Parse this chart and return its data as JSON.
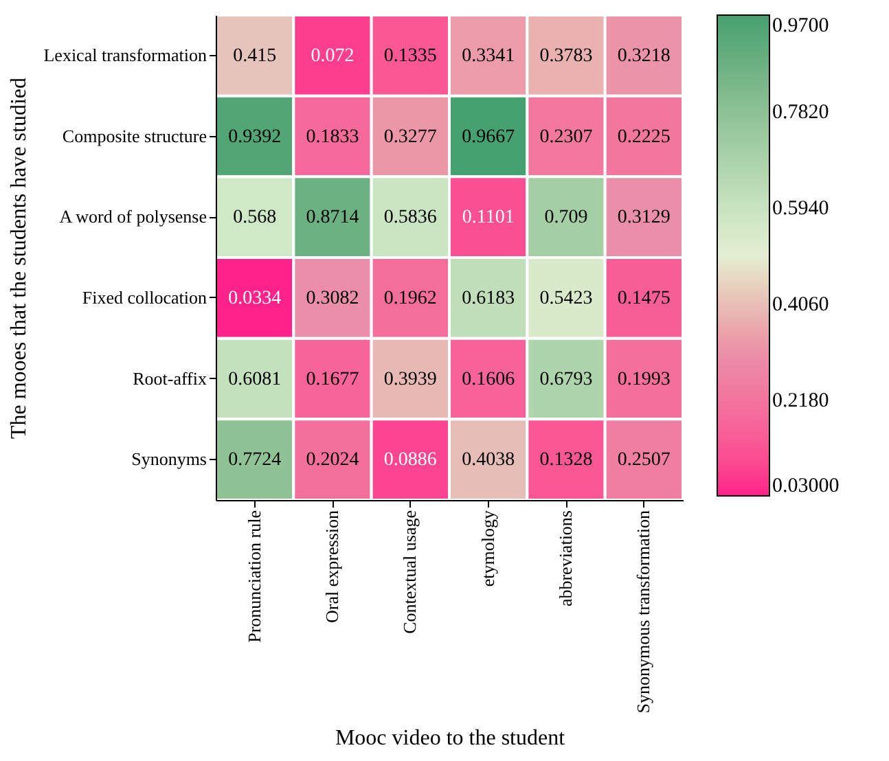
{
  "chart_data": {
    "type": "heatmap",
    "xlabel": "Mooc video to the student",
    "ylabel": "The mooes that the students have studied",
    "categories": [
      "Pronunciation rule",
      "Oral expression",
      "Contextual usage",
      "etymology",
      "abbreviations",
      "Synonymous transformation"
    ],
    "y_categories": [
      "Lexical transformation",
      "Composite structure",
      "A word of polysense",
      "Fixed collocation",
      "Root-affix",
      "Synonyms"
    ],
    "cells": [
      [
        0.415,
        0.072,
        0.1335,
        0.3341,
        0.3783,
        0.3218
      ],
      [
        0.9392,
        0.1833,
        0.3277,
        0.9667,
        0.2307,
        0.2225
      ],
      [
        0.568,
        0.8714,
        0.5836,
        0.1101,
        0.709,
        0.3129
      ],
      [
        0.0334,
        0.3082,
        0.1962,
        0.6183,
        0.5423,
        0.1475
      ],
      [
        0.6081,
        0.1677,
        0.3939,
        0.1606,
        0.6793,
        0.1993
      ],
      [
        0.7724,
        0.2024,
        0.0886,
        0.4038,
        0.1328,
        0.2507
      ]
    ],
    "data_labels": true,
    "clim": [
      0.03,
      0.97
    ],
    "cticks": [
      {
        "value": 0.03,
        "label": "0.03000"
      },
      {
        "value": 0.218,
        "label": "0.2180"
      },
      {
        "value": 0.406,
        "label": "0.4060"
      },
      {
        "value": 0.594,
        "label": "0.5940"
      },
      {
        "value": 0.782,
        "label": "0.7820"
      },
      {
        "value": 0.97,
        "label": "0.9700"
      }
    ]
  }
}
